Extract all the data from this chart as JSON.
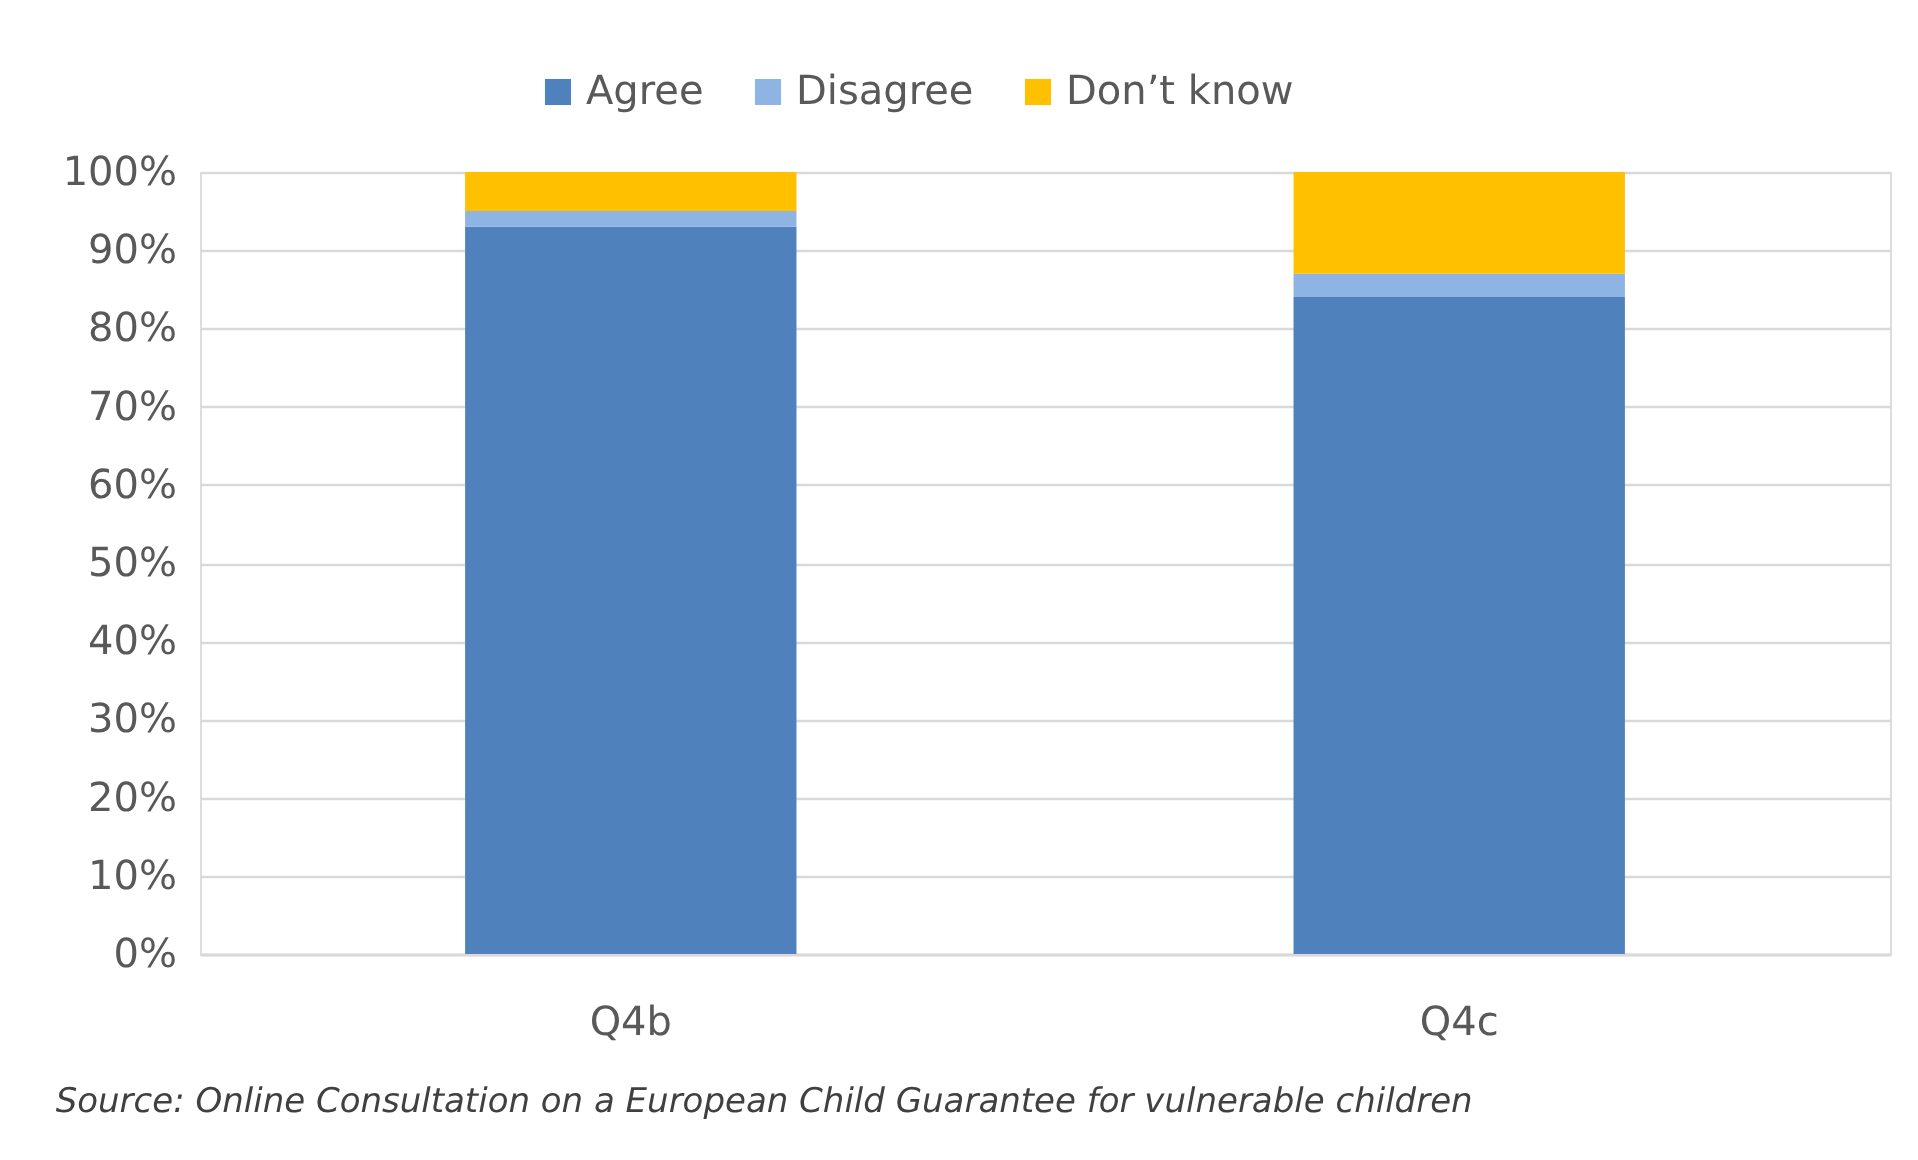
{
  "chart_data": {
    "type": "bar",
    "stacked": true,
    "categories": [
      "Q4b",
      "Q4c"
    ],
    "series": [
      {
        "name": "Agree",
        "color": "#4f81bd",
        "values": [
          93,
          84
        ]
      },
      {
        "name": "Disagree",
        "color": "#8db4e2",
        "values": [
          2,
          3
        ]
      },
      {
        "name": "Don’t know",
        "color": "#ffc000",
        "values": [
          5,
          13
        ]
      }
    ],
    "ylim": [
      0,
      100
    ],
    "yticks": [
      {
        "value": 0,
        "label": "0%"
      },
      {
        "value": 10,
        "label": "10%"
      },
      {
        "value": 20,
        "label": "20%"
      },
      {
        "value": 30,
        "label": "30%"
      },
      {
        "value": 40,
        "label": "40%"
      },
      {
        "value": 50,
        "label": "50%"
      },
      {
        "value": 60,
        "label": "60%"
      },
      {
        "value": 70,
        "label": "70%"
      },
      {
        "value": 80,
        "label": "80%"
      },
      {
        "value": 90,
        "label": "90%"
      },
      {
        "value": 100,
        "label": "100%"
      }
    ],
    "grid": "y",
    "legend": "top",
    "annotations": [
      "Source: Online Consultation on a European Child Guarantee for vulnerable children"
    ]
  }
}
